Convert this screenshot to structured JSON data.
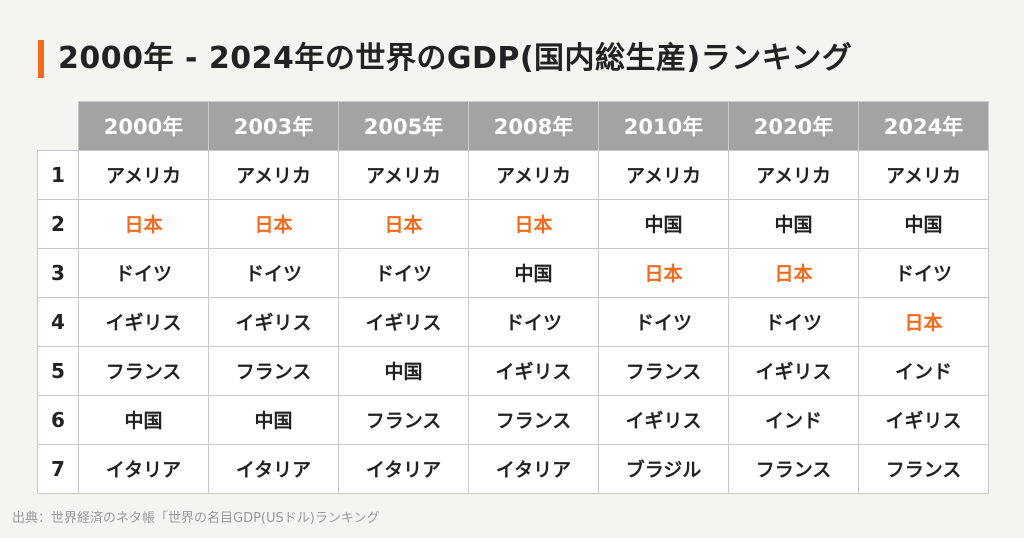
{
  "title": "2000年 - 2024年の世界のGDP(国内総生産)ランキング",
  "accent_color": "#f26a1b",
  "header_color": "#a3a3a3",
  "years": [
    "2000年",
    "2003年",
    "2005年",
    "2008年",
    "2010年",
    "2020年",
    "2024年"
  ],
  "rows": [
    {
      "rank": "1",
      "cells": [
        "アメリカ",
        "アメリカ",
        "アメリカ",
        "アメリカ",
        "アメリカ",
        "アメリカ",
        "アメリカ"
      ]
    },
    {
      "rank": "2",
      "cells": [
        "日本",
        "日本",
        "日本",
        "日本",
        "中国",
        "中国",
        "中国"
      ]
    },
    {
      "rank": "3",
      "cells": [
        "ドイツ",
        "ドイツ",
        "ドイツ",
        "中国",
        "日本",
        "日本",
        "ドイツ"
      ]
    },
    {
      "rank": "4",
      "cells": [
        "イギリス",
        "イギリス",
        "イギリス",
        "ドイツ",
        "ドイツ",
        "ドイツ",
        "日本"
      ]
    },
    {
      "rank": "5",
      "cells": [
        "フランス",
        "フランス",
        "中国",
        "イギリス",
        "フランス",
        "イギリス",
        "インド"
      ]
    },
    {
      "rank": "6",
      "cells": [
        "中国",
        "中国",
        "フランス",
        "フランス",
        "イギリス",
        "インド",
        "イギリス"
      ]
    },
    {
      "rank": "7",
      "cells": [
        "イタリア",
        "イタリア",
        "イタリア",
        "イタリア",
        "ブラジル",
        "フランス",
        "フランス"
      ]
    }
  ],
  "highlight_country": "日本",
  "source": "出典：世界経済のネタ帳「世界の名目GDP(USドル)ランキング"
}
